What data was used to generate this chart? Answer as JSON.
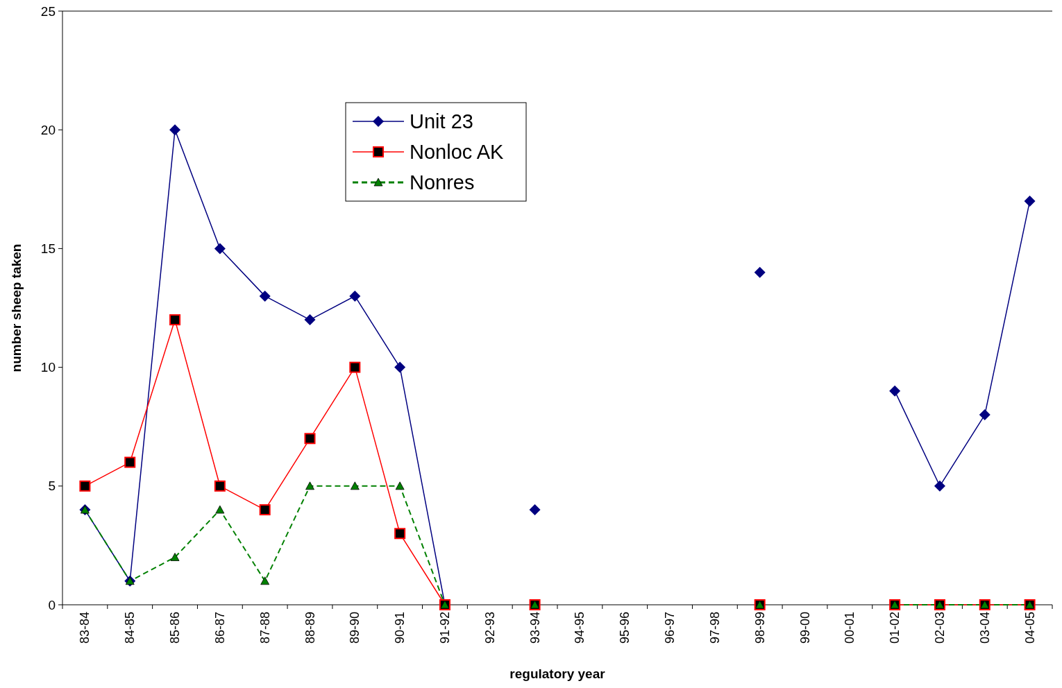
{
  "chart_data": {
    "type": "line",
    "xlabel": "regulatory year",
    "ylabel": "number sheep taken",
    "categories": [
      "83-84",
      "84-85",
      "85-86",
      "86-87",
      "87-88",
      "88-89",
      "89-90",
      "90-91",
      "91-92",
      "92-93",
      "93-94",
      "94-95",
      "95-96",
      "96-97",
      "97-98",
      "98-99",
      "99-00",
      "00-01",
      "01-02",
      "02-03",
      "03-04",
      "04-05"
    ],
    "series": [
      {
        "name": "Unit 23",
        "color": "#000080",
        "marker": "diamond",
        "line_style": "solid",
        "values": [
          4,
          1,
          20,
          15,
          13,
          12,
          13,
          10,
          0,
          null,
          4,
          null,
          null,
          null,
          null,
          14,
          null,
          null,
          9,
          5,
          8,
          17
        ]
      },
      {
        "name": "Nonloc AK",
        "color": "#ff0000",
        "marker": "square",
        "line_style": "solid",
        "values": [
          5,
          6,
          12,
          5,
          4,
          7,
          10,
          3,
          0,
          null,
          0,
          null,
          null,
          null,
          null,
          0,
          null,
          null,
          0,
          0,
          0,
          0
        ]
      },
      {
        "name": "Nonres",
        "color": "#008000",
        "marker": "triangle",
        "line_style": "dashed",
        "values": [
          4,
          1,
          2,
          4,
          1,
          5,
          5,
          5,
          0,
          null,
          0,
          null,
          null,
          null,
          null,
          0,
          null,
          null,
          0,
          0,
          0,
          0
        ]
      }
    ],
    "ylim": [
      0,
      25
    ],
    "yticks": [
      0,
      5,
      10,
      15,
      20,
      25
    ],
    "grid": false,
    "legend": "top"
  }
}
